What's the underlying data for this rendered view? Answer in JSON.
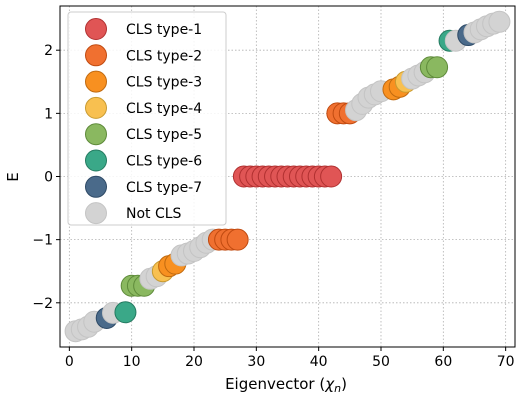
{
  "chart_data": {
    "type": "scatter",
    "xlabel_main": "Eigenvector (",
    "xlabel_symbol": "χ",
    "xlabel_sub": "n",
    "xlabel_close": ")",
    "ylabel": "E",
    "xlim": [
      -1.5,
      71.5
    ],
    "ylim": [
      -2.7,
      2.7
    ],
    "xticks": [
      0,
      10,
      20,
      30,
      40,
      50,
      60,
      70
    ],
    "yticks": [
      -2,
      -1,
      0,
      1,
      2
    ],
    "grid": true,
    "legend_position": "top-left",
    "series": [
      {
        "name": "Not CLS",
        "color": "#d3d3d3",
        "edge": "#c4c4c4",
        "x": [
          1,
          2,
          3,
          4,
          7,
          13,
          14,
          18,
          19,
          20,
          21,
          22,
          23,
          46,
          47,
          48,
          49,
          50,
          55,
          56,
          57,
          62,
          65,
          66,
          67,
          68,
          69
        ],
        "y": [
          -2.45,
          -2.42,
          -2.38,
          -2.3,
          -2.16,
          -1.62,
          -1.58,
          -1.25,
          -1.22,
          -1.18,
          -1.12,
          -1.05,
          -1.0,
          1.05,
          1.15,
          1.25,
          1.3,
          1.35,
          1.55,
          1.6,
          1.65,
          2.15,
          2.28,
          2.33,
          2.38,
          2.42,
          2.45
        ]
      },
      {
        "name": "CLS type-1",
        "color": "#e05555",
        "edge": "#b03030",
        "x": [
          28,
          29,
          30,
          31,
          32,
          33,
          34,
          35,
          36,
          37,
          38,
          39,
          40,
          41,
          42
        ],
        "y": [
          0,
          0,
          0,
          0,
          0,
          0,
          0,
          0,
          0,
          0,
          0,
          0,
          0,
          0,
          0
        ]
      },
      {
        "name": "CLS type-2",
        "color": "#f07030",
        "edge": "#c04a10",
        "x": [
          24,
          25,
          26,
          27,
          43,
          44,
          45
        ],
        "y": [
          -1,
          -1,
          -1,
          -1,
          1,
          1,
          1
        ]
      },
      {
        "name": "CLS type-3",
        "color": "#f89020",
        "edge": "#c06a10",
        "x": [
          16,
          17,
          52,
          53
        ],
        "y": [
          -1.42,
          -1.38,
          1.38,
          1.42
        ]
      },
      {
        "name": "CLS type-4",
        "color": "#f8c050",
        "edge": "#c89a30",
        "x": [
          15,
          54
        ],
        "y": [
          -1.5,
          1.5
        ]
      },
      {
        "name": "CLS type-5",
        "color": "#8ab860",
        "edge": "#5e8a3a",
        "x": [
          10,
          11,
          12,
          58,
          59
        ],
        "y": [
          -1.73,
          -1.73,
          -1.73,
          1.73,
          1.73
        ]
      },
      {
        "name": "CLS type-6",
        "color": "#3aa888",
        "edge": "#247a60",
        "x": [
          9,
          61
        ],
        "y": [
          -2.15,
          2.15
        ]
      },
      {
        "name": "CLS type-7",
        "color": "#4a6a8a",
        "edge": "#2e4a66",
        "x": [
          6,
          64
        ],
        "y": [
          -2.24,
          2.24
        ]
      }
    ],
    "legend_order": [
      "CLS type-1",
      "CLS type-2",
      "CLS type-3",
      "CLS type-4",
      "CLS type-5",
      "CLS type-6",
      "CLS type-7",
      "Not CLS"
    ]
  }
}
